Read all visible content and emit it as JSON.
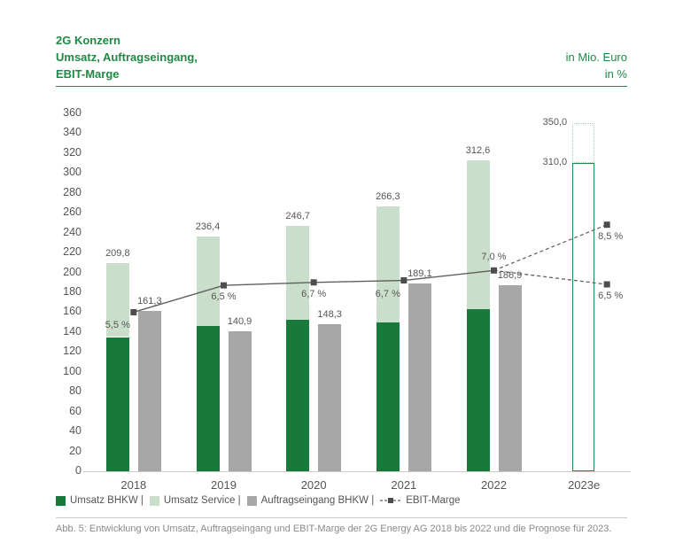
{
  "header": {
    "title_line1": "2G Konzern",
    "title_line2": "Umsatz, Auftragseingang,",
    "title_line3": "EBIT-Marge",
    "unit_line1": "in Mio. Euro",
    "unit_line2": "in %"
  },
  "caption": "Abb. 5: Entwicklung von Umsatz, Auftragseingang und EBIT-Marge der 2G Energy AG 2018 bis 2022 und die Prognose für 2023.",
  "colors": {
    "dark_green": "#177a3b",
    "light_green": "#c9dfcc",
    "gray_bar": "#a7a7a7",
    "line_gray": "#5f5f5f",
    "marker_gray": "#4d4d4d",
    "text_gray": "#555555",
    "caption_gray": "#8a8a8a",
    "green_accent": "#1f8a45",
    "forecast_border": "#1f8a45",
    "forecast_dotted": "#a9cfb3",
    "axis_line": "#cccccc"
  },
  "legend": {
    "items": [
      {
        "key": "umsatz_bhkw",
        "label": "Umsatz BHKW |"
      },
      {
        "key": "umsatz_service",
        "label": "Umsatz Service |"
      },
      {
        "key": "auftragseingang",
        "label": "Auftragseingang BHKW |"
      },
      {
        "key": "ebit",
        "label": "EBIT-Marge"
      }
    ]
  },
  "chart_data": {
    "type": "bar",
    "title": "2G Konzern – Umsatz, Auftragseingang, EBIT-Marge",
    "units": [
      "in Mio. Euro",
      "in %"
    ],
    "categories": [
      "2018",
      "2019",
      "2020",
      "2021",
      "2022",
      "2023e"
    ],
    "ylim": [
      0,
      360
    ],
    "ytick_step": 20,
    "grid": false,
    "legend_position": "bottom",
    "series": [
      {
        "name": "Umsatz BHKW",
        "values": [
          135,
          146,
          152,
          150,
          163
        ]
      },
      {
        "name": "Umsatz Service (Anteil)",
        "values": [
          74.8,
          90.4,
          94.7,
          116.3,
          149.6
        ]
      },
      {
        "name": "Umsatz gesamt",
        "values": [
          209.8,
          236.4,
          246.7,
          266.3,
          312.6
        ],
        "labels": [
          "209,8",
          "236,4",
          "246,7",
          "266,3",
          "312,6"
        ]
      },
      {
        "name": "Auftragseingang BHKW",
        "values": [
          161.3,
          140.9,
          148.3,
          189.1,
          186.9
        ],
        "labels": [
          "161,3",
          "140,9",
          "148,3",
          "189,1",
          "186,9"
        ]
      },
      {
        "name": "EBIT-Marge",
        "values_pct": [
          5.5,
          6.5,
          6.7,
          6.7,
          7.0
        ],
        "labels": [
          "5,5 %",
          "6,5 %",
          "6,7 %",
          "6,7 %",
          "7,0 %"
        ],
        "label_pos": [
          "below-left",
          "below",
          "below",
          "below-left",
          "above"
        ],
        "axis_values": [
          160,
          187,
          190,
          192,
          202
        ]
      }
    ],
    "forecast_2023e": {
      "category": "2023e",
      "umsatz_target": 310.0,
      "umsatz_target_label": "310,0",
      "umsatz_upper": 350.0,
      "umsatz_upper_label": "350,0",
      "ebit_upper_pct": 8.5,
      "ebit_upper_label": "8,5 %",
      "ebit_upper_axis": 248,
      "ebit_lower_pct": 6.5,
      "ebit_lower_label": "6,5 %",
      "ebit_lower_axis": 188
    }
  }
}
